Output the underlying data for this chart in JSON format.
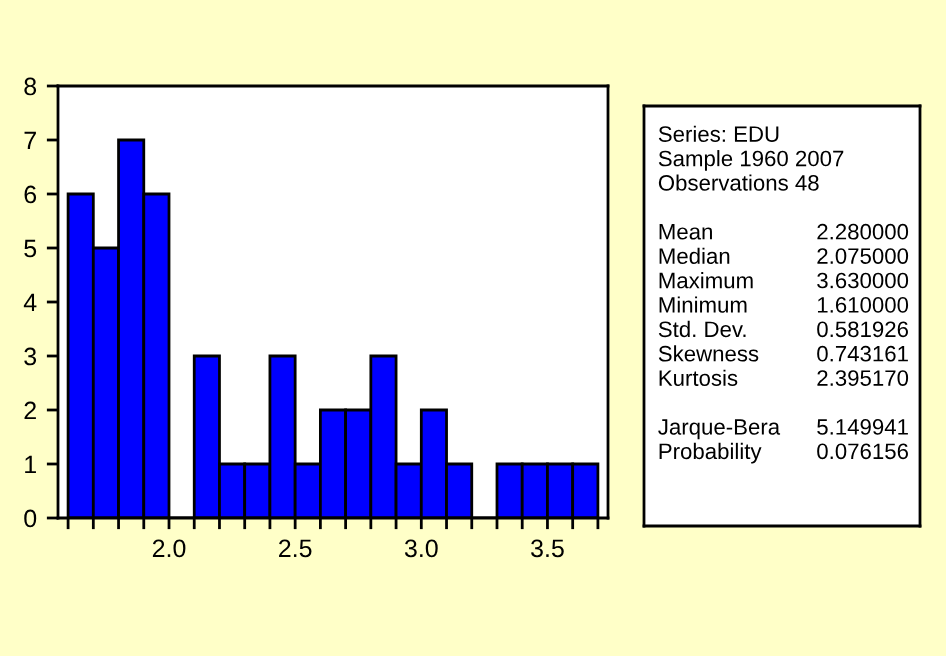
{
  "chart_data": [
    {
      "type": "histogram",
      "color": "#0000ff",
      "bins": [
        1.6,
        1.7,
        1.8,
        1.9,
        2.0,
        2.1,
        2.2,
        2.3,
        2.4,
        2.5,
        2.6,
        2.7,
        2.8,
        2.9,
        3.0,
        3.1,
        3.2,
        3.3,
        3.4,
        3.5,
        3.6,
        3.7
      ],
      "values": [
        6,
        5,
        7,
        6,
        0,
        3,
        1,
        1,
        3,
        1,
        2,
        2,
        3,
        1,
        2,
        1,
        0,
        1,
        1,
        1,
        1
      ],
      "xlim": [
        1.56,
        3.74
      ],
      "ylim": [
        0,
        8
      ],
      "yticks": [
        0,
        1,
        2,
        3,
        4,
        5,
        6,
        7,
        8
      ],
      "xticks": [
        {
          "value": 1.6,
          "label": null
        },
        {
          "value": 1.7,
          "label": null
        },
        {
          "value": 1.8,
          "label": null
        },
        {
          "value": 1.9,
          "label": null
        },
        {
          "value": 2.0,
          "label": "2.0"
        },
        {
          "value": 2.1,
          "label": null
        },
        {
          "value": 2.2,
          "label": null
        },
        {
          "value": 2.3,
          "label": null
        },
        {
          "value": 2.4,
          "label": null
        },
        {
          "value": 2.5,
          "label": "2.5"
        },
        {
          "value": 2.6,
          "label": null
        },
        {
          "value": 2.7,
          "label": null
        },
        {
          "value": 2.8,
          "label": null
        },
        {
          "value": 2.9,
          "label": null
        },
        {
          "value": 3.0,
          "label": "3.0"
        },
        {
          "value": 3.1,
          "label": null
        },
        {
          "value": 3.2,
          "label": null
        },
        {
          "value": 3.3,
          "label": null
        },
        {
          "value": 3.4,
          "label": null
        },
        {
          "value": 3.5,
          "label": "3.5"
        },
        {
          "value": 3.6,
          "label": null
        },
        {
          "value": 3.7,
          "label": null
        }
      ],
      "grid": false,
      "legend": false
    },
    {
      "type": "other",
      "annotations": [
        "Series: EDU",
        "Sample 1960 2007",
        "Observations 48",
        "Mean",
        "2.280000",
        "Median",
        "2.075000",
        "Maximum",
        "3.630000",
        "Minimum",
        "1.610000",
        "Std. Dev.",
        "0.581926",
        "Skewness",
        "0.743161",
        "Kurtosis",
        "2.395170",
        "Jarque-Bera",
        "5.149941",
        "Probability",
        "0.076156"
      ]
    }
  ]
}
